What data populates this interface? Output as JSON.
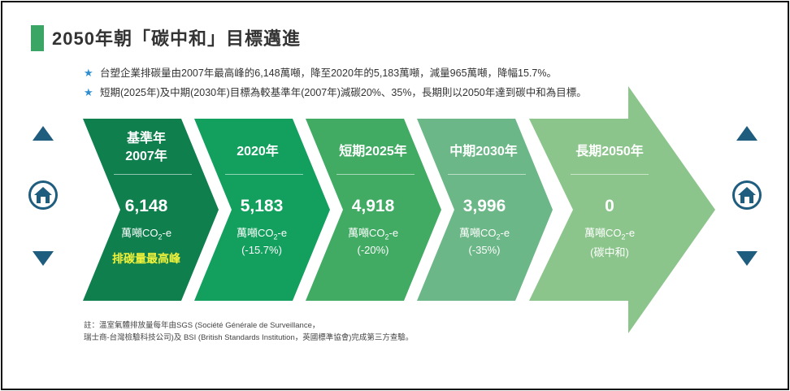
{
  "title": "2050年朝「碳中和」目標邁進",
  "bullets": [
    "台塑企業排碳量由2007年最高峰的6,148萬噸，降至2020年的5,183萬噸，減量965萬噸，降幅15.7%。",
    "短期(2025年)及中期(2030年)目標為較基準年(2007年)減碳20%、35%，長期則以2050年達到碳中和為目標。"
  ],
  "segments": [
    {
      "label_line1": "基準年",
      "label_line2": "2007年",
      "value": "6,148",
      "unit_main": "萬噸CO",
      "unit_sub": "2",
      "unit_tail": "-e",
      "note": "",
      "highlight": "排碳量最高峰",
      "color": "#0f7f4e"
    },
    {
      "label_line1": "2020年",
      "label_line2": "",
      "value": "5,183",
      "unit_main": "萬噸CO",
      "unit_sub": "2",
      "unit_tail": "-e",
      "note": "(-15.7%)",
      "highlight": "",
      "color": "#13a05e"
    },
    {
      "label_line1": "短期2025年",
      "label_line2": "",
      "value": "4,918",
      "unit_main": "萬噸CO",
      "unit_sub": "2",
      "unit_tail": "-e",
      "note": "(-20%)",
      "highlight": "",
      "color": "#41aa63"
    },
    {
      "label_line1": "中期2030年",
      "label_line2": "",
      "value": "3,996",
      "unit_main": "萬噸CO",
      "unit_sub": "2",
      "unit_tail": "-e",
      "note": "(-35%)",
      "highlight": "",
      "color": "#6cb787"
    },
    {
      "label_line1": "長期2050年",
      "label_line2": "",
      "value": "0",
      "unit_main": "萬噸CO",
      "unit_sub": "2",
      "unit_tail": "-e",
      "note": "(碳中和)",
      "highlight": "",
      "color": "#8cc58c"
    }
  ],
  "footnote": [
    "註：溫室氣體排放量每年由SGS (Société Générale de Surveillance，",
    "瑞士商-台灣檢驗科技公司)及 BSI (British Standards Institution，英國標準協會)完成第三方查驗。"
  ],
  "nav": {
    "up_icon": "triangle-up-icon",
    "home_icon": "home-icon",
    "down_icon": "triangle-down-icon",
    "color": "#1f5d7f"
  }
}
